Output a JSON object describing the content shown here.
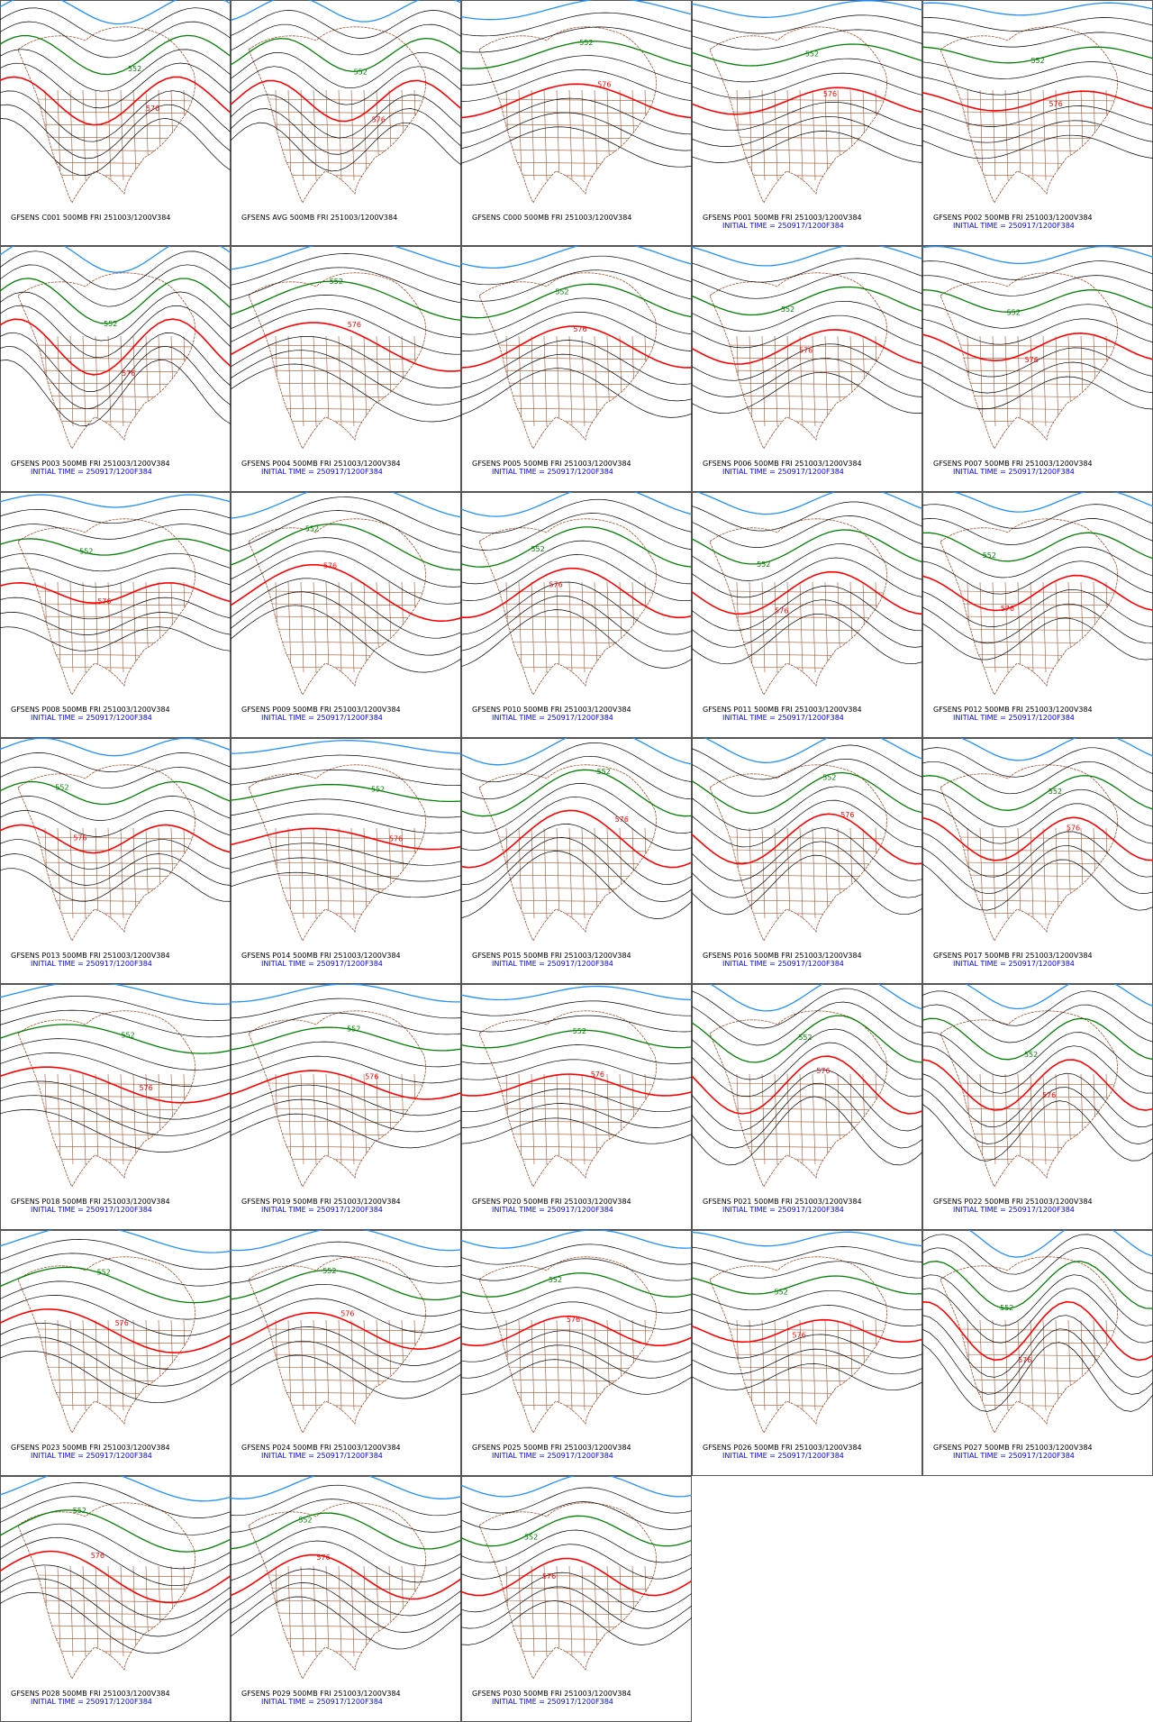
{
  "panels": [
    {
      "line1": "GFSENS C001 500MB FRI 251003/1200V384",
      "labels": [
        "552",
        "576"
      ]
    },
    {
      "line1": "GFSENS AVG 500MB FRI 251003/1200V384",
      "labels": [
        "552",
        "576"
      ]
    },
    {
      "line1": "GFSENS C000 500MB FRI 251003/1200V384",
      "labels": [
        "552",
        "576"
      ]
    },
    {
      "line1": "GFSENS P001 500MB FRI 251003/1200V384",
      "line2": "INITIAL TIME = 250917/1200F384",
      "labels": [
        "552",
        "576"
      ]
    },
    {
      "line1": "GFSENS P002 500MB FRI 251003/1200V384",
      "line2": "INITIAL TIME = 250917/1200F384",
      "labels": [
        "552",
        "576"
      ]
    },
    {
      "line1": "GFSENS P003 500MB FRI 251003/1200V384",
      "line2": "INITIAL TIME = 250917/1200F384",
      "labels": [
        "552",
        "576"
      ]
    },
    {
      "line1": "GFSENS P004 500MB FRI 251003/1200V384",
      "line2": "INITIAL TIME = 250917/1200F384",
      "labels": [
        "552",
        "576"
      ]
    },
    {
      "line1": "GFSENS P005 500MB FRI 251003/1200V384",
      "line2": "INITIAL TIME = 250917/1200F384",
      "labels": [
        "552",
        "576"
      ]
    },
    {
      "line1": "GFSENS P006 500MB FRI 251003/1200V384",
      "line2": "INITIAL TIME = 250917/1200F384",
      "labels": [
        "552",
        "576"
      ]
    },
    {
      "line1": "GFSENS P007 500MB FRI 251003/1200V384",
      "line2": "INITIAL TIME = 250917/1200F384",
      "labels": [
        "552",
        "576"
      ]
    },
    {
      "line1": "GFSENS P008 500MB FRI 251003/1200V384",
      "line2": "INITIAL TIME = 250917/1200F384",
      "labels": [
        "552",
        "576"
      ]
    },
    {
      "line1": "GFSENS P009 500MB FRI 251003/1200V384",
      "line2": "INITIAL TIME = 250917/1200F384",
      "labels": [
        "552",
        "576"
      ]
    },
    {
      "line1": "GFSENS P010 500MB FRI 251003/1200V384",
      "line2": "INITIAL TIME = 250917/1200F384",
      "labels": [
        "552",
        "576"
      ]
    },
    {
      "line1": "GFSENS P011 500MB FRI 251003/1200V384",
      "line2": "INITIAL TIME = 250917/1200F384",
      "labels": [
        "552",
        "576"
      ]
    },
    {
      "line1": "GFSENS P012 500MB FRI 251003/1200V384",
      "line2": "INITIAL TIME = 250917/1200F384",
      "labels": [
        "552",
        "576"
      ]
    },
    {
      "line1": "GFSENS P013 500MB FRI 251003/1200V384",
      "line2": "INITIAL TIME = 250917/1200F384",
      "labels": [
        "552",
        "576"
      ]
    },
    {
      "line1": "GFSENS P014 500MB FRI 251003/1200V384",
      "line2": "INITIAL TIME = 250917/1200F384",
      "labels": [
        "552",
        "576"
      ]
    },
    {
      "line1": "GFSENS P015 500MB FRI 251003/1200V384",
      "line2": "INITIAL TIME = 250917/1200F384",
      "labels": [
        "552",
        "576"
      ]
    },
    {
      "line1": "GFSENS P016 500MB FRI 251003/1200V384",
      "line2": "INITIAL TIME = 250917/1200F384",
      "labels": [
        "552",
        "576"
      ]
    },
    {
      "line1": "GFSENS P017 500MB FRI 251003/1200V384",
      "line2": "INITIAL TIME = 250917/1200F384",
      "labels": [
        "552",
        "576"
      ]
    },
    {
      "line1": "GFSENS P018 500MB FRI 251003/1200V384",
      "line2": "INITIAL TIME = 250917/1200F384",
      "labels": [
        "552",
        "576"
      ]
    },
    {
      "line1": "GFSENS P019 500MB FRI 251003/1200V384",
      "line2": "INITIAL TIME = 250917/1200F384",
      "labels": [
        "552",
        "576"
      ]
    },
    {
      "line1": "GFSENS P020 500MB FRI 251003/1200V384",
      "line2": "INITIAL TIME = 250917/1200F384",
      "labels": [
        "552",
        "576"
      ]
    },
    {
      "line1": "GFSENS P021 500MB FRI 251003/1200V384",
      "line2": "INITIAL TIME = 250917/1200F384",
      "labels": [
        "552",
        "576"
      ]
    },
    {
      "line1": "GFSENS P022 500MB FRI 251003/1200V384",
      "line2": "INITIAL TIME = 250917/1200F384",
      "labels": [
        "552",
        "576"
      ]
    },
    {
      "line1": "GFSENS P023 500MB FRI 251003/1200V384",
      "line2": "INITIAL TIME = 250917/1200F384",
      "labels": [
        "552",
        "576"
      ]
    },
    {
      "line1": "GFSENS P024 500MB FRI 251003/1200V384",
      "line2": "INITIAL TIME = 250917/1200F384",
      "labels": [
        "552",
        "576"
      ]
    },
    {
      "line1": "GFSENS P025 500MB FRI 251003/1200V384",
      "line2": "INITIAL TIME = 250917/1200F384",
      "labels": [
        "552",
        "576"
      ]
    },
    {
      "line1": "GFSENS P026 500MB FRI 251003/1200V384",
      "line2": "INITIAL TIME = 250917/1200F384",
      "labels": [
        "552",
        "576"
      ]
    },
    {
      "line1": "GFSENS P027 500MB FRI 251003/1200V384",
      "line2": "INITIAL TIME = 250917/1200F384",
      "labels": [
        "552",
        "576"
      ]
    },
    {
      "line1": "GFSENS P028 500MB FRI 251003/1200V384",
      "line2": "INITIAL TIME = 250917/1200F384",
      "labels": [
        "552",
        "576"
      ]
    },
    {
      "line1": "GFSENS P029 500MB FRI 251003/1200V384",
      "line2": "INITIAL TIME = 250917/1200F384",
      "labels": [
        "552",
        "576"
      ]
    },
    {
      "line1": "GFSENS P030 500MB FRI 251003/1200V384",
      "line2": "INITIAL TIME = 250917/1200F384",
      "labels": [
        "552",
        "576"
      ]
    }
  ]
}
